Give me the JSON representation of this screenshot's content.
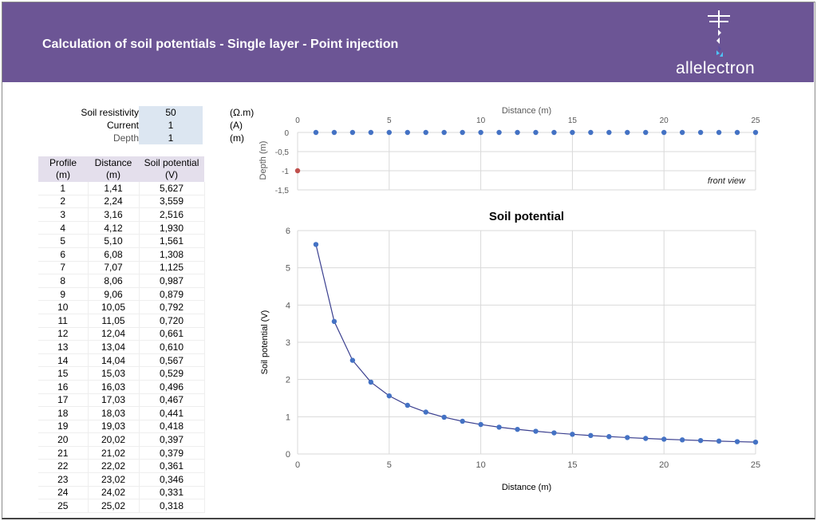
{
  "header": {
    "title": "Calculation of soil potentials - Single layer - Point injection",
    "logo": "allelectron",
    "color": "#6c5595"
  },
  "params": [
    {
      "label": "Soil resistivity",
      "value": "50",
      "unit": "(Ω.m)"
    },
    {
      "label": "Current",
      "value": "1",
      "unit": "(A)"
    },
    {
      "label": "Depth",
      "value": "1",
      "unit": "(m)"
    }
  ],
  "table": {
    "headers": [
      [
        "Profile",
        "(m)"
      ],
      [
        "Distance",
        "(m)"
      ],
      [
        "Soil potential",
        "(V)"
      ]
    ],
    "rows": [
      [
        "1",
        "1,41",
        "5,627"
      ],
      [
        "2",
        "2,24",
        "3,559"
      ],
      [
        "3",
        "3,16",
        "2,516"
      ],
      [
        "4",
        "4,12",
        "1,930"
      ],
      [
        "5",
        "5,10",
        "1,561"
      ],
      [
        "6",
        "6,08",
        "1,308"
      ],
      [
        "7",
        "7,07",
        "1,125"
      ],
      [
        "8",
        "8,06",
        "0,987"
      ],
      [
        "9",
        "9,06",
        "0,879"
      ],
      [
        "10",
        "10,05",
        "0,792"
      ],
      [
        "11",
        "11,05",
        "0,720"
      ],
      [
        "12",
        "12,04",
        "0,661"
      ],
      [
        "13",
        "13,04",
        "0,610"
      ],
      [
        "14",
        "14,04",
        "0,567"
      ],
      [
        "15",
        "15,03",
        "0,529"
      ],
      [
        "16",
        "16,03",
        "0,496"
      ],
      [
        "17",
        "17,03",
        "0,467"
      ],
      [
        "18",
        "18,03",
        "0,441"
      ],
      [
        "19",
        "19,03",
        "0,418"
      ],
      [
        "20",
        "20,02",
        "0,397"
      ],
      [
        "21",
        "21,02",
        "0,379"
      ],
      [
        "22",
        "22,02",
        "0,361"
      ],
      [
        "23",
        "23,02",
        "0,346"
      ],
      [
        "24",
        "24,02",
        "0,331"
      ],
      [
        "25",
        "25,02",
        "0,318"
      ]
    ]
  },
  "chart_data": [
    {
      "type": "scatter",
      "title": "",
      "xlabel": "Distance (m)",
      "ylabel": "Depth (m)",
      "xlim": [
        0,
        25
      ],
      "ylim": [
        -1.5,
        0
      ],
      "xticks": [
        "0",
        "5",
        "10",
        "15",
        "20",
        "25"
      ],
      "yticks": [
        "0",
        "-0,5",
        "-1",
        "-1,5"
      ],
      "annotation": "front view",
      "grid": true,
      "series": [
        {
          "points": [
            [
              1,
              0
            ],
            [
              2,
              0
            ],
            [
              3,
              0
            ],
            [
              4,
              0
            ],
            [
              5,
              0
            ],
            [
              6,
              0
            ],
            [
              7,
              0
            ],
            [
              8,
              0
            ],
            [
              9,
              0
            ],
            [
              10,
              0
            ],
            [
              11,
              0
            ],
            [
              12,
              0
            ],
            [
              13,
              0
            ],
            [
              14,
              0
            ],
            [
              15,
              0
            ],
            [
              16,
              0
            ],
            [
              17,
              0
            ],
            [
              18,
              0
            ],
            [
              19,
              0
            ],
            [
              20,
              0
            ],
            [
              21,
              0
            ],
            [
              22,
              0
            ],
            [
              23,
              0
            ],
            [
              24,
              0
            ],
            [
              25,
              0
            ]
          ],
          "color": "#4472c4"
        },
        {
          "points": [
            [
              0,
              -1
            ]
          ],
          "color": "#c0504d"
        }
      ]
    },
    {
      "type": "line",
      "title": "Soil potential",
      "xlabel": "Distance (m)",
      "ylabel": "Soil potential (V)",
      "xlim": [
        0,
        25
      ],
      "ylim": [
        0,
        6
      ],
      "xticks": [
        "0",
        "5",
        "10",
        "15",
        "20",
        "25"
      ],
      "yticks": [
        "0",
        "1",
        "2",
        "3",
        "4",
        "5",
        "6"
      ],
      "grid": true,
      "line_color": "#3a3f8f",
      "marker_color": "#4472c4",
      "x": [
        1,
        2,
        3,
        4,
        5,
        6,
        7,
        8,
        9,
        10,
        11,
        12,
        13,
        14,
        15,
        16,
        17,
        18,
        19,
        20,
        21,
        22,
        23,
        24,
        25
      ],
      "y": [
        5.627,
        3.559,
        2.516,
        1.93,
        1.561,
        1.308,
        1.125,
        0.987,
        0.879,
        0.792,
        0.72,
        0.661,
        0.61,
        0.567,
        0.529,
        0.496,
        0.467,
        0.441,
        0.418,
        0.397,
        0.379,
        0.361,
        0.346,
        0.331,
        0.318
      ]
    }
  ]
}
